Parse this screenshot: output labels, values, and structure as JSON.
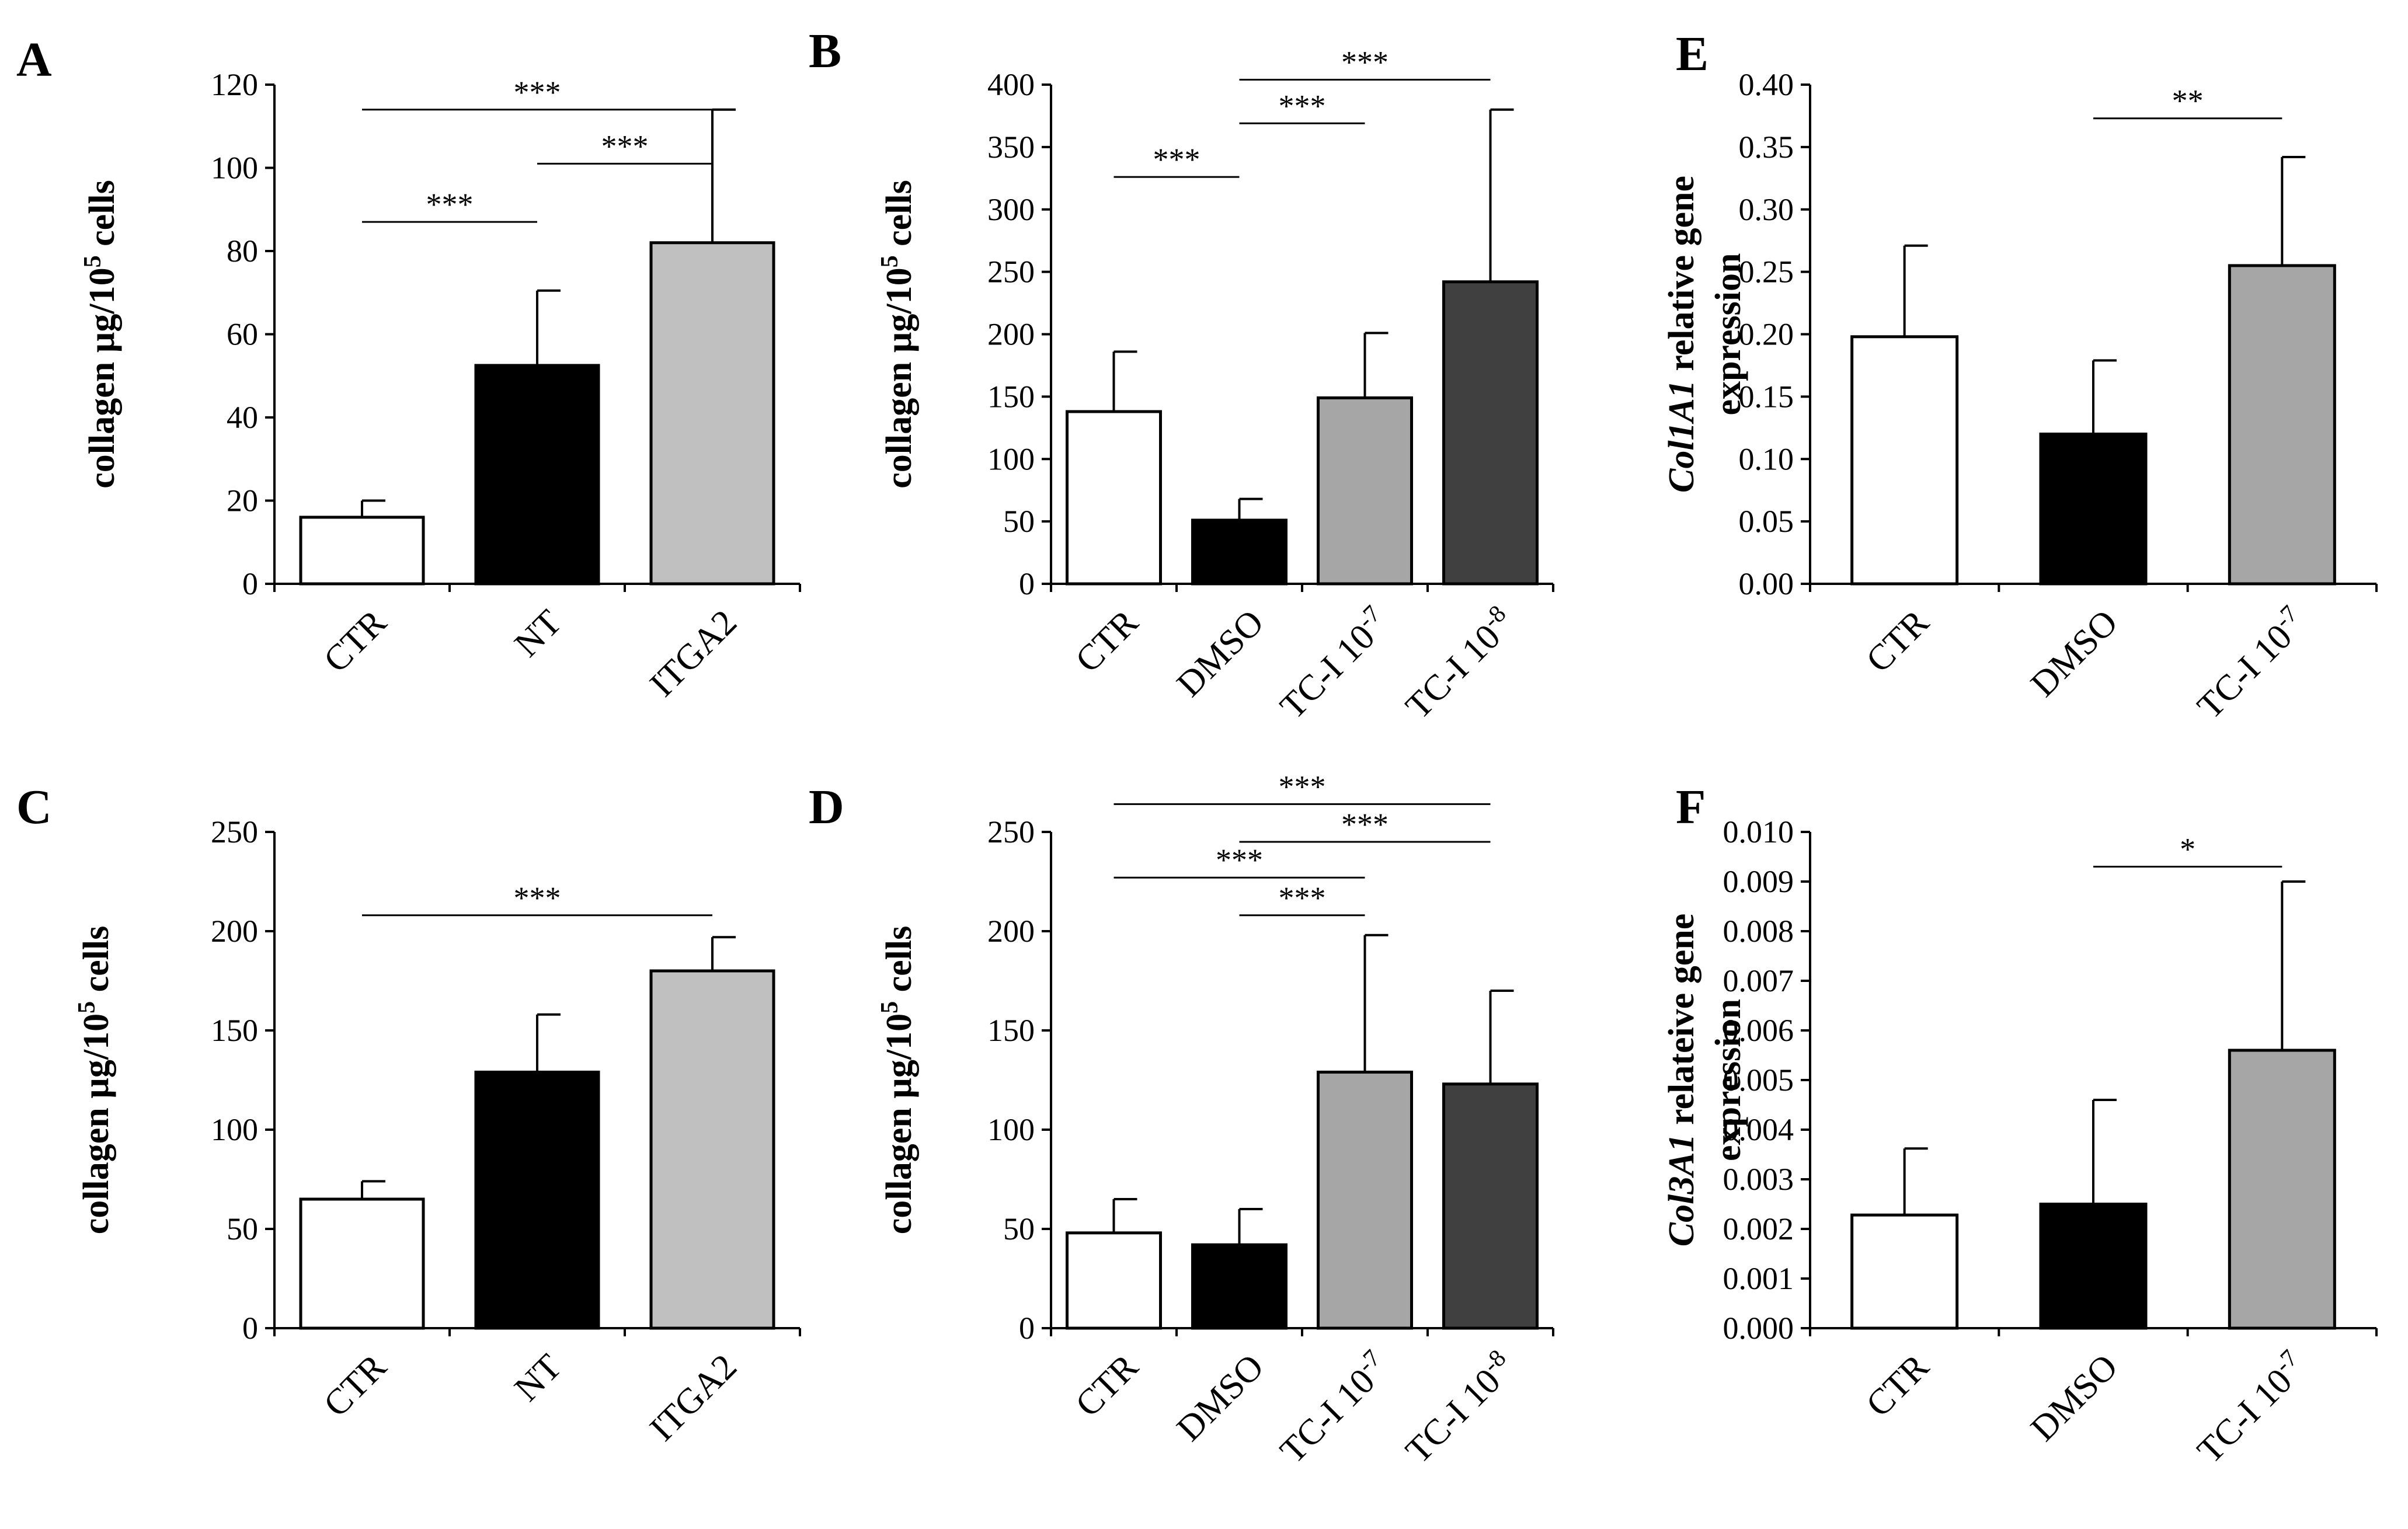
{
  "colors": {
    "ctr": "#ffffff",
    "black": "#000000",
    "light_gray": "#c0c0c0",
    "mid_gray": "#a6a6a6",
    "dark_gray": "#404040",
    "axis": "#000000"
  },
  "chart_data": [
    {
      "id": "A",
      "panel_label": "A",
      "type": "bar",
      "ylabel_parts": [
        {
          "t": "collagen µg/10"
        },
        {
          "t": "5",
          "sup": true
        },
        {
          "t": " cells"
        }
      ],
      "ylim": [
        0,
        120
      ],
      "yticks": [
        "0",
        "20",
        "40",
        "60",
        "80",
        "100",
        "120"
      ],
      "categories": [
        {
          "parts": [
            {
              "t": "CTR"
            }
          ]
        },
        {
          "parts": [
            {
              "t": "NT"
            }
          ]
        },
        {
          "parts": [
            {
              "t": "ITGA2"
            }
          ]
        }
      ],
      "values": [
        16,
        52.5,
        82
      ],
      "errors": [
        4,
        18,
        32
      ],
      "bar_colors": [
        "#ffffff",
        "#000000",
        "#c0c0c0"
      ],
      "significance": [
        {
          "from": 0,
          "to": 2,
          "label": "***",
          "level": 114
        },
        {
          "from": 1,
          "to": 2,
          "label": "***",
          "level": 101
        },
        {
          "from": 0,
          "to": 1,
          "label": "***",
          "level": 87
        }
      ]
    },
    {
      "id": "B",
      "panel_label": "B",
      "type": "bar",
      "ylabel_parts": [
        {
          "t": "collagen µg/10"
        },
        {
          "t": "5",
          "sup": true
        },
        {
          "t": " cells"
        }
      ],
      "ylim": [
        0,
        400
      ],
      "yticks": [
        "0",
        "50",
        "100",
        "150",
        "200",
        "250",
        "300",
        "350",
        "400"
      ],
      "categories": [
        {
          "parts": [
            {
              "t": "CTR"
            }
          ]
        },
        {
          "parts": [
            {
              "t": "DMSO"
            }
          ]
        },
        {
          "parts": [
            {
              "t": "TC-I 10"
            },
            {
              "t": "-7",
              "sup": true
            }
          ]
        },
        {
          "parts": [
            {
              "t": "TC-I 10"
            },
            {
              "t": "-8",
              "sup": true
            }
          ]
        }
      ],
      "values": [
        138,
        51,
        149,
        242
      ],
      "errors": [
        48,
        17,
        52,
        138
      ],
      "bar_colors": [
        "#ffffff",
        "#000000",
        "#a6a6a6",
        "#404040"
      ],
      "significance": [
        {
          "from": 1,
          "to": 3,
          "label": "***",
          "level": 404
        },
        {
          "from": 1,
          "to": 2,
          "label": "***",
          "level": 369
        },
        {
          "from": 0,
          "to": 1,
          "label": "***",
          "level": 326
        }
      ]
    },
    {
      "id": "E",
      "panel_label": "E",
      "type": "bar",
      "ylabel_parts": [
        {
          "t": "Col1A1",
          "italic": true
        },
        {
          "t": " relative gene"
        }
      ],
      "ylabel2_parts": [
        {
          "t": "expression"
        }
      ],
      "ylim": [
        0,
        0.4
      ],
      "yticks": [
        "0.00",
        "0.05",
        "0.10",
        "0.15",
        "0.20",
        "0.25",
        "0.30",
        "0.35",
        "0.40"
      ],
      "categories": [
        {
          "parts": [
            {
              "t": "CTR"
            }
          ]
        },
        {
          "parts": [
            {
              "t": "DMSO"
            }
          ]
        },
        {
          "parts": [
            {
              "t": "TC-I 10"
            },
            {
              "t": "-7",
              "sup": true
            }
          ]
        }
      ],
      "values": [
        0.198,
        0.12,
        0.255
      ],
      "errors": [
        0.073,
        0.059,
        0.087
      ],
      "bar_colors": [
        "#ffffff",
        "#000000",
        "#a6a6a6"
      ],
      "significance": [
        {
          "from": 1,
          "to": 2,
          "label": "**",
          "level": 0.373
        }
      ]
    },
    {
      "id": "C",
      "panel_label": "C",
      "type": "bar",
      "ylabel_parts": [
        {
          "t": "collagen µg/10"
        },
        {
          "t": "5",
          "sup": true
        },
        {
          "t": " cells"
        }
      ],
      "ylim": [
        0,
        250
      ],
      "yticks": [
        "0",
        "50",
        "100",
        "150",
        "200",
        "250"
      ],
      "categories": [
        {
          "parts": [
            {
              "t": "CTR"
            }
          ]
        },
        {
          "parts": [
            {
              "t": "NT"
            }
          ]
        },
        {
          "parts": [
            {
              "t": "ITGA2"
            }
          ]
        }
      ],
      "values": [
        65,
        129,
        180
      ],
      "errors": [
        9,
        29,
        17
      ],
      "bar_colors": [
        "#ffffff",
        "#000000",
        "#c0c0c0"
      ],
      "significance": [
        {
          "from": 0,
          "to": 2,
          "label": "***",
          "level": 208
        }
      ]
    },
    {
      "id": "D",
      "panel_label": "D",
      "type": "bar",
      "ylabel_parts": [
        {
          "t": "collagen µg/10"
        },
        {
          "t": "5",
          "sup": true
        },
        {
          "t": " cells"
        }
      ],
      "ylim": [
        0,
        250
      ],
      "yticks": [
        "0",
        "50",
        "100",
        "150",
        "200",
        "250"
      ],
      "categories": [
        {
          "parts": [
            {
              "t": "CTR"
            }
          ]
        },
        {
          "parts": [
            {
              "t": "DMSO"
            }
          ]
        },
        {
          "parts": [
            {
              "t": "TC-I 10"
            },
            {
              "t": "-7",
              "sup": true
            }
          ]
        },
        {
          "parts": [
            {
              "t": "TC-I 10"
            },
            {
              "t": "-8",
              "sup": true
            }
          ]
        }
      ],
      "values": [
        48,
        42,
        129,
        123
      ],
      "errors": [
        17,
        18,
        69,
        47
      ],
      "bar_colors": [
        "#ffffff",
        "#000000",
        "#a6a6a6",
        "#404040"
      ],
      "significance": [
        {
          "from": 0,
          "to": 3,
          "label": "***",
          "level": 264
        },
        {
          "from": 1,
          "to": 3,
          "label": "***",
          "level": 245
        },
        {
          "from": 0,
          "to": 2,
          "label": "***",
          "level": 227
        },
        {
          "from": 1,
          "to": 2,
          "label": "***",
          "level": 208
        }
      ]
    },
    {
      "id": "F",
      "panel_label": "F",
      "type": "bar",
      "ylabel_parts": [
        {
          "t": "Col3A1",
          "italic": true
        },
        {
          "t": " relateive gene"
        }
      ],
      "ylabel2_parts": [
        {
          "t": "expression"
        }
      ],
      "ylim": [
        0,
        0.01
      ],
      "yticks": [
        "0.000",
        "0.001",
        "0.002",
        "0.003",
        "0.004",
        "0.005",
        "0.006",
        "0.007",
        "0.008",
        "0.009",
        "0.010"
      ],
      "categories": [
        {
          "parts": [
            {
              "t": "CTR"
            }
          ]
        },
        {
          "parts": [
            {
              "t": "DMSO"
            }
          ]
        },
        {
          "parts": [
            {
              "t": "TC-I 10"
            },
            {
              "t": "-7",
              "sup": true
            }
          ]
        }
      ],
      "values": [
        0.00228,
        0.0025,
        0.0056
      ],
      "errors": [
        0.00134,
        0.0021,
        0.0034
      ],
      "bar_colors": [
        "#ffffff",
        "#000000",
        "#a6a6a6"
      ],
      "significance": [
        {
          "from": 1,
          "to": 2,
          "label": "*",
          "level": 0.0093
        }
      ]
    }
  ]
}
